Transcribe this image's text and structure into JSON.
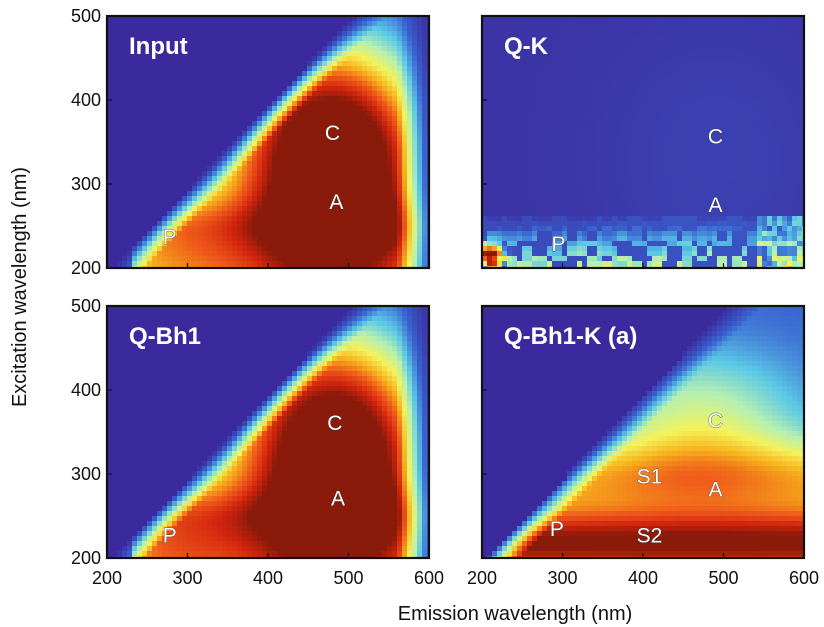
{
  "chart_data": {
    "type": "heatmap",
    "xlabel": "Emission wavelength (nm)",
    "ylabel": "Excitation wavelength (nm)",
    "xlim": [
      200,
      600
    ],
    "ylim": [
      200,
      500
    ],
    "xticks": [
      "200",
      "300",
      "400",
      "500",
      "600"
    ],
    "yticks": [
      "200",
      "300",
      "400",
      "500"
    ],
    "colormap": [
      "#3b2a9e",
      "#3a63d0",
      "#59c7e6",
      "#b6f0b0",
      "#f4f25a",
      "#f7b21c",
      "#ef5a1a",
      "#d3250e",
      "#8a1a0a"
    ],
    "panels": [
      {
        "title": "Input",
        "shape": "triangle",
        "peaks": [
          {
            "label": "C",
            "ex": 362,
            "em": 480,
            "intensity": 1.0
          },
          {
            "label": "A",
            "ex": 280,
            "em": 485,
            "intensity": 0.93
          },
          {
            "label": "P",
            "ex": 238,
            "em": 278,
            "intensity": 0.45
          }
        ]
      },
      {
        "title": "Q-K",
        "shape": "residual",
        "peaks": [
          {
            "label": "C",
            "ex": 358,
            "em": 490,
            "intensity": 0.05
          },
          {
            "label": "A",
            "ex": 276,
            "em": 490,
            "intensity": 0.05
          },
          {
            "label": "P",
            "ex": 230,
            "em": 295,
            "intensity": 0.35
          }
        ]
      },
      {
        "title": "Q-Bh1",
        "shape": "triangle",
        "peaks": [
          {
            "label": "C",
            "ex": 362,
            "em": 483,
            "intensity": 0.92
          },
          {
            "label": "A",
            "ex": 272,
            "em": 487,
            "intensity": 0.95
          },
          {
            "label": "P",
            "ex": 228,
            "em": 278,
            "intensity": 0.6
          }
        ]
      },
      {
        "title": "Q-Bh1-K (a)",
        "shape": "banded",
        "peaks": [
          {
            "label": "C",
            "ex": 365,
            "em": 490,
            "intensity": 0.35
          },
          {
            "label": "S1",
            "ex": 298,
            "em": 408,
            "intensity": 0.55
          },
          {
            "label": "A",
            "ex": 283,
            "em": 490,
            "intensity": 0.55
          },
          {
            "label": "P",
            "ex": 236,
            "em": 293,
            "intensity": 0.8
          },
          {
            "label": "S2",
            "ex": 228,
            "em": 408,
            "intensity": 0.85
          }
        ]
      }
    ]
  }
}
